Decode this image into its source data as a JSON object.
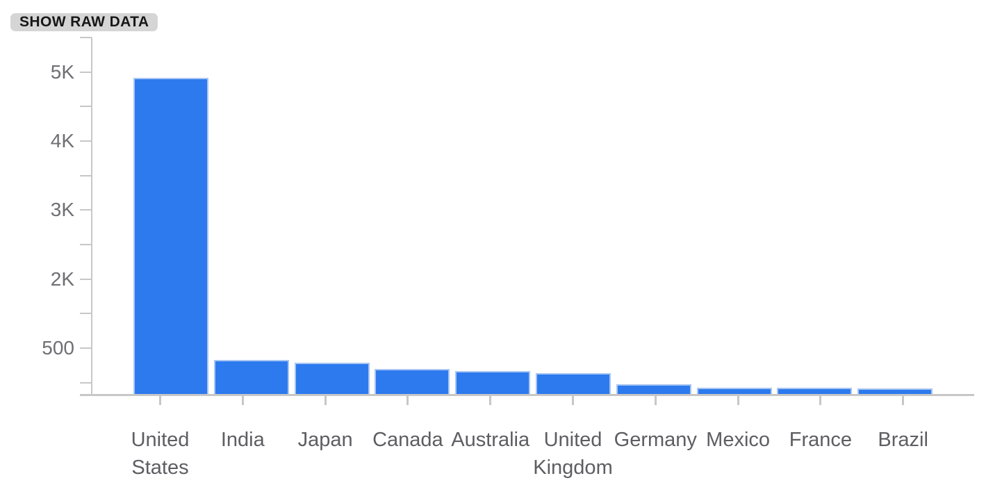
{
  "toolbar": {
    "show_raw_data_label": "SHOW RAW DATA"
  },
  "chart_data": {
    "type": "bar",
    "title": "",
    "xlabel": "",
    "ylabel": "",
    "categories": [
      "United States",
      "India",
      "Japan",
      "Canada",
      "Australia",
      "United Kingdom",
      "Germany",
      "Mexico",
      "France",
      "Brazil"
    ],
    "values": [
      4900,
      360,
      330,
      270,
      245,
      225,
      105,
      68,
      66,
      60
    ],
    "y_tick_labels": [
      "5K",
      "4K",
      "3K",
      "2K",
      "500"
    ],
    "y_tick_values": [
      5000,
      4000,
      3000,
      2000,
      500
    ],
    "ylim": [
      0,
      5500
    ],
    "grid": false,
    "legend": "none",
    "bar_color": "#2d7aee",
    "bar_edge_color": "#a9c6f2",
    "axis_color": "#c7c7c7",
    "x_label_color": "#5d5d62",
    "y_label_color": "#6e6e73"
  }
}
